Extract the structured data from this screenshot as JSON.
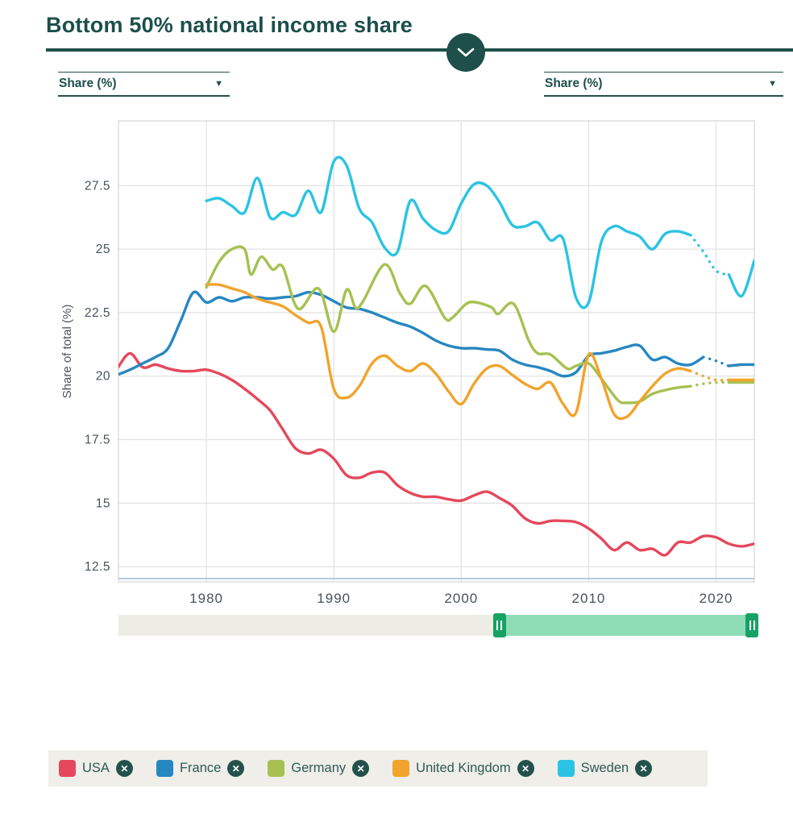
{
  "header": {
    "title": "Bottom 50% national income share"
  },
  "controls": {
    "left_unit_selector": "Share (%)",
    "right_unit_selector": "Share (%)",
    "dropdown_arrow": "▼"
  },
  "chart_data": {
    "type": "line",
    "title": "Bottom 50% national income share",
    "xlabel": "",
    "ylabel": "Share of total (%)",
    "x_domain": [
      1973.1,
      2023
    ],
    "y_domain": [
      11.9,
      30.05
    ],
    "x_ticks": [
      1980,
      1990,
      2000,
      2010,
      2020
    ],
    "y_ticks": [
      12.5,
      15,
      17.5,
      20,
      22.5,
      25,
      27.5
    ],
    "grid": true,
    "legend_position": "bottom",
    "series": [
      {
        "name": "USA",
        "color": "#e5485c",
        "points": [
          [
            1973,
            20.3
          ],
          [
            1974,
            20.9
          ],
          [
            1975,
            20.35
          ],
          [
            1976,
            20.45
          ],
          [
            1977,
            20.3
          ],
          [
            1978,
            20.2
          ],
          [
            1979,
            20.2
          ],
          [
            1980,
            20.25
          ],
          [
            1981,
            20.1
          ],
          [
            1982,
            19.85
          ],
          [
            1983,
            19.5
          ],
          [
            1984,
            19.1
          ],
          [
            1985,
            18.65
          ],
          [
            1986,
            17.9
          ],
          [
            1987,
            17.15
          ],
          [
            1988,
            16.95
          ],
          [
            1989,
            17.1
          ],
          [
            1990,
            16.75
          ],
          [
            1991,
            16.1
          ],
          [
            1992,
            16.0
          ],
          [
            1993,
            16.2
          ],
          [
            1994,
            16.2
          ],
          [
            1995,
            15.7
          ],
          [
            1996,
            15.4
          ],
          [
            1997,
            15.25
          ],
          [
            1998,
            15.25
          ],
          [
            1999,
            15.15
          ],
          [
            2000,
            15.1
          ],
          [
            2001,
            15.3
          ],
          [
            2002,
            15.45
          ],
          [
            2003,
            15.2
          ],
          [
            2004,
            14.9
          ],
          [
            2005,
            14.4
          ],
          [
            2006,
            14.2
          ],
          [
            2007,
            14.3
          ],
          [
            2008,
            14.3
          ],
          [
            2009,
            14.25
          ],
          [
            2010,
            14.0
          ],
          [
            2011,
            13.6
          ],
          [
            2012,
            13.15
          ],
          [
            2013,
            13.45
          ],
          [
            2014,
            13.15
          ],
          [
            2015,
            13.2
          ],
          [
            2016,
            12.95
          ],
          [
            2017,
            13.45
          ],
          [
            2018,
            13.45
          ],
          [
            2019,
            13.7
          ],
          [
            2020,
            13.65
          ],
          [
            2021,
            13.4
          ],
          [
            2022,
            13.3
          ],
          [
            2023,
            13.4
          ]
        ]
      },
      {
        "name": "France",
        "color": "#2787c1",
        "dotted": [
          2019,
          2021
        ],
        "points": [
          [
            1973,
            20.05
          ],
          [
            1974,
            20.25
          ],
          [
            1975,
            20.5
          ],
          [
            1976,
            20.75
          ],
          [
            1977,
            21.1
          ],
          [
            1978,
            22.2
          ],
          [
            1979,
            23.3
          ],
          [
            1980,
            22.9
          ],
          [
            1981,
            23.1
          ],
          [
            1982,
            22.95
          ],
          [
            1983,
            23.1
          ],
          [
            1984,
            23.1
          ],
          [
            1985,
            23.05
          ],
          [
            1986,
            23.1
          ],
          [
            1987,
            23.15
          ],
          [
            1988,
            23.3
          ],
          [
            1989,
            23.2
          ],
          [
            1990,
            22.95
          ],
          [
            1991,
            22.7
          ],
          [
            1992,
            22.65
          ],
          [
            1993,
            22.5
          ],
          [
            1994,
            22.3
          ],
          [
            1995,
            22.1
          ],
          [
            1996,
            21.95
          ],
          [
            1997,
            21.7
          ],
          [
            1998,
            21.4
          ],
          [
            1999,
            21.2
          ],
          [
            2000,
            21.1
          ],
          [
            2001,
            21.1
          ],
          [
            2002,
            21.05
          ],
          [
            2003,
            21.0
          ],
          [
            2004,
            20.65
          ],
          [
            2005,
            20.45
          ],
          [
            2006,
            20.35
          ],
          [
            2007,
            20.2
          ],
          [
            2008,
            20.0
          ],
          [
            2009,
            20.15
          ],
          [
            2010,
            20.8
          ],
          [
            2011,
            20.9
          ],
          [
            2012,
            21.0
          ],
          [
            2013,
            21.15
          ],
          [
            2014,
            21.2
          ],
          [
            2015,
            20.65
          ],
          [
            2016,
            20.75
          ],
          [
            2017,
            20.5
          ],
          [
            2018,
            20.45
          ],
          [
            2019,
            20.75
          ],
          [
            2020,
            20.6
          ],
          [
            2021,
            20.4
          ],
          [
            2022,
            20.45
          ],
          [
            2023,
            20.45
          ]
        ]
      },
      {
        "name": "Germany",
        "color": "#a6c152",
        "dotted": [
          2018,
          2021
        ],
        "points": [
          [
            1980,
            23.5
          ],
          [
            1981,
            24.5
          ],
          [
            1982,
            25.0
          ],
          [
            1983,
            25.0
          ],
          [
            1983.5,
            24.0
          ],
          [
            1984.3,
            24.7
          ],
          [
            1985.2,
            24.2
          ],
          [
            1986,
            24.3
          ],
          [
            1987.2,
            22.65
          ],
          [
            1988.8,
            23.45
          ],
          [
            1990,
            21.75
          ],
          [
            1991,
            23.4
          ],
          [
            1991.7,
            22.7
          ],
          [
            1992.3,
            22.95
          ],
          [
            1994,
            24.4
          ],
          [
            1995.2,
            23.25
          ],
          [
            1996,
            22.85
          ],
          [
            1997.2,
            23.55
          ],
          [
            1998.7,
            22.3
          ],
          [
            1999.3,
            22.3
          ],
          [
            2000.4,
            22.85
          ],
          [
            2001.2,
            22.9
          ],
          [
            2002.4,
            22.7
          ],
          [
            2002.9,
            22.45
          ],
          [
            2004.1,
            22.85
          ],
          [
            2005.3,
            21.4
          ],
          [
            2006,
            20.9
          ],
          [
            2007,
            20.85
          ],
          [
            2008.3,
            20.3
          ],
          [
            2009,
            20.4
          ],
          [
            2010,
            20.5
          ],
          [
            2011,
            19.9
          ],
          [
            2012.3,
            19.05
          ],
          [
            2013,
            18.95
          ],
          [
            2014,
            19.0
          ],
          [
            2015,
            19.3
          ],
          [
            2016,
            19.45
          ],
          [
            2017,
            19.55
          ],
          [
            2018,
            19.6
          ],
          [
            2019,
            19.7
          ],
          [
            2020,
            19.75
          ],
          [
            2021,
            19.75
          ],
          [
            2022,
            19.75
          ],
          [
            2023,
            19.75
          ]
        ]
      },
      {
        "name": "United Kingdom",
        "color": "#f0a42d",
        "dotted": [
          2018,
          2021
        ],
        "points": [
          [
            1980,
            23.6
          ],
          [
            1981,
            23.6
          ],
          [
            1982,
            23.45
          ],
          [
            1983,
            23.3
          ],
          [
            1984,
            23.05
          ],
          [
            1985,
            22.9
          ],
          [
            1986,
            22.75
          ],
          [
            1987,
            22.4
          ],
          [
            1988,
            22.1
          ],
          [
            1989,
            21.95
          ],
          [
            1990,
            19.5
          ],
          [
            1991,
            19.15
          ],
          [
            1992,
            19.6
          ],
          [
            1993,
            20.5
          ],
          [
            1994,
            20.8
          ],
          [
            1995,
            20.4
          ],
          [
            1996,
            20.2
          ],
          [
            1997,
            20.5
          ],
          [
            1998,
            20.1
          ],
          [
            1999,
            19.4
          ],
          [
            2000,
            18.9
          ],
          [
            2001,
            19.7
          ],
          [
            2002,
            20.3
          ],
          [
            2003,
            20.4
          ],
          [
            2004,
            20.05
          ],
          [
            2005,
            19.7
          ],
          [
            2006,
            19.5
          ],
          [
            2007,
            19.75
          ],
          [
            2008,
            18.9
          ],
          [
            2009,
            18.55
          ],
          [
            2010,
            20.85
          ],
          [
            2011,
            19.9
          ],
          [
            2012,
            18.5
          ],
          [
            2013,
            18.4
          ],
          [
            2014,
            19.0
          ],
          [
            2015,
            19.6
          ],
          [
            2016,
            20.1
          ],
          [
            2017,
            20.3
          ],
          [
            2018,
            20.2
          ],
          [
            2019,
            20.0
          ],
          [
            2020,
            19.85
          ],
          [
            2021,
            19.85
          ],
          [
            2022,
            19.85
          ],
          [
            2023,
            19.85
          ]
        ]
      },
      {
        "name": "Sweden",
        "color": "#2bc3e3",
        "dotted": [
          2018,
          2021
        ],
        "points": [
          [
            1980,
            26.9
          ],
          [
            1981,
            27.0
          ],
          [
            1982,
            26.7
          ],
          [
            1983,
            26.45
          ],
          [
            1984,
            27.8
          ],
          [
            1985,
            26.25
          ],
          [
            1986,
            26.45
          ],
          [
            1987,
            26.35
          ],
          [
            1988,
            27.3
          ],
          [
            1989,
            26.45
          ],
          [
            1990,
            28.45
          ],
          [
            1991,
            28.3
          ],
          [
            1992,
            26.6
          ],
          [
            1993,
            26.05
          ],
          [
            1994,
            25.05
          ],
          [
            1995,
            24.9
          ],
          [
            1996,
            26.9
          ],
          [
            1997,
            26.2
          ],
          [
            1998,
            25.75
          ],
          [
            1999,
            25.7
          ],
          [
            2000,
            26.8
          ],
          [
            2001,
            27.55
          ],
          [
            2002,
            27.5
          ],
          [
            2003,
            26.85
          ],
          [
            2004,
            25.95
          ],
          [
            2005,
            25.9
          ],
          [
            2006,
            26.05
          ],
          [
            2007,
            25.35
          ],
          [
            2008,
            25.4
          ],
          [
            2009,
            23.1
          ],
          [
            2010,
            22.9
          ],
          [
            2011,
            25.3
          ],
          [
            2012,
            25.9
          ],
          [
            2013,
            25.7
          ],
          [
            2014,
            25.5
          ],
          [
            2015,
            25.0
          ],
          [
            2016,
            25.6
          ],
          [
            2017,
            25.7
          ],
          [
            2018,
            25.55
          ],
          [
            2019,
            24.9
          ],
          [
            2020,
            24.15
          ],
          [
            2021,
            24.0
          ],
          [
            2022,
            23.15
          ],
          [
            2023,
            24.55
          ]
        ]
      }
    ]
  },
  "slider": {
    "selected_range": [
      2003,
      2023
    ]
  },
  "legend": {
    "close_icon": "✕"
  },
  "colors": {
    "accent_teal": "#1e4f4a",
    "grid": "#e3e3e3",
    "plot_border": "#d8d8d8",
    "axis_text": "#47525d",
    "baseline_blue": "#b7cbe2",
    "slider_track": "#edece5",
    "slider_range": "#8edcb5",
    "slider_handle": "#17a265",
    "legend_bg": "#efeee9",
    "legend_text": "#2d5a55"
  }
}
